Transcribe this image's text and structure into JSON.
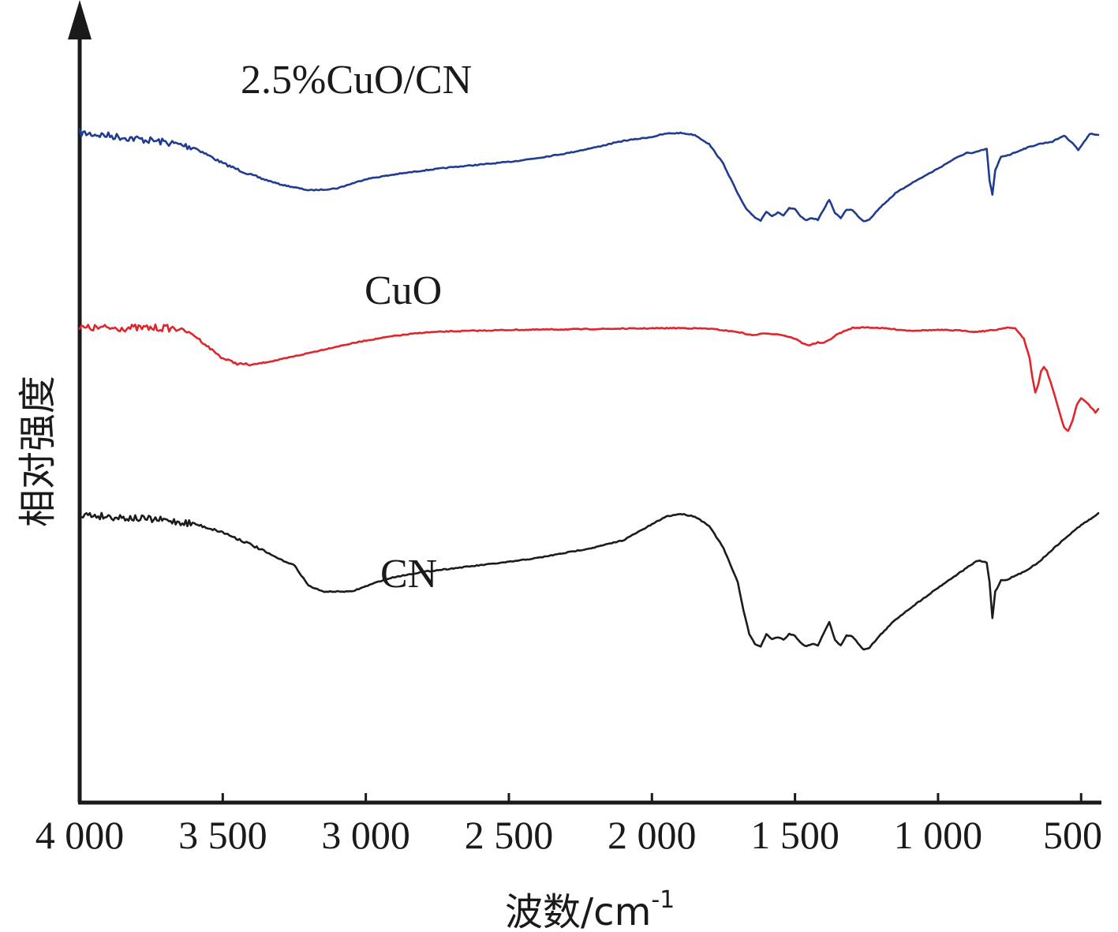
{
  "chart_data": {
    "type": "line",
    "xlabel": "波数/cm",
    "xlabel_sup": "-1",
    "ylabel": "相对强度",
    "xlim": [
      4000,
      440
    ],
    "x_reversed": true,
    "y_ticks_shown": false,
    "grid": false,
    "ylim": [
      0,
      100
    ],
    "xticks": [
      4000,
      3500,
      3000,
      2500,
      2000,
      1500,
      1000,
      500
    ],
    "xtick_labels": [
      "4 000",
      "3 500",
      "3 000",
      "2 500",
      "2 000",
      "1 500",
      "1 000",
      "500"
    ],
    "series": [
      {
        "name": "2.5%CuO/CN",
        "color": "#1f3c8f",
        "noisy_above": 3600,
        "points": [
          [
            4000,
            91.2
          ],
          [
            3900,
            90.8
          ],
          [
            3800,
            90.3
          ],
          [
            3700,
            89.8
          ],
          [
            3600,
            89.0
          ],
          [
            3500,
            86.6
          ],
          [
            3400,
            84.8
          ],
          [
            3300,
            83.4
          ],
          [
            3200,
            82.5
          ],
          [
            3150,
            82.6
          ],
          [
            3100,
            82.8
          ],
          [
            3000,
            84.2
          ],
          [
            2900,
            84.9
          ],
          [
            2800,
            85.5
          ],
          [
            2700,
            86.0
          ],
          [
            2600,
            86.4
          ],
          [
            2500,
            86.8
          ],
          [
            2400,
            87.4
          ],
          [
            2300,
            88.1
          ],
          [
            2200,
            89.0
          ],
          [
            2100,
            90.0
          ],
          [
            2000,
            90.6
          ],
          [
            1950,
            91.1
          ],
          [
            1900,
            91.2
          ],
          [
            1850,
            90.9
          ],
          [
            1800,
            89.5
          ],
          [
            1750,
            86.5
          ],
          [
            1700,
            82.0
          ],
          [
            1670,
            79.6
          ],
          [
            1640,
            78.4
          ],
          [
            1620,
            77.9
          ],
          [
            1600,
            79.3
          ],
          [
            1580,
            78.6
          ],
          [
            1560,
            79.1
          ],
          [
            1540,
            78.7
          ],
          [
            1520,
            79.8
          ],
          [
            1500,
            79.6
          ],
          [
            1480,
            78.5
          ],
          [
            1460,
            77.9
          ],
          [
            1440,
            78.3
          ],
          [
            1420,
            78.0
          ],
          [
            1400,
            79.6
          ],
          [
            1380,
            81.1
          ],
          [
            1360,
            79.0
          ],
          [
            1340,
            78.3
          ],
          [
            1320,
            79.6
          ],
          [
            1300,
            79.5
          ],
          [
            1280,
            78.6
          ],
          [
            1260,
            77.8
          ],
          [
            1240,
            78.1
          ],
          [
            1200,
            80.0
          ],
          [
            1150,
            82.0
          ],
          [
            1100,
            83.4
          ],
          [
            1050,
            84.6
          ],
          [
            1000,
            85.8
          ],
          [
            950,
            87.1
          ],
          [
            900,
            88.2
          ],
          [
            880,
            88.1
          ],
          [
            860,
            88.4
          ],
          [
            830,
            88.8
          ],
          [
            820,
            84.0
          ],
          [
            810,
            81.8
          ],
          [
            800,
            85.5
          ],
          [
            780,
            87.6
          ],
          [
            750,
            87.9
          ],
          [
            700,
            88.8
          ],
          [
            650,
            89.5
          ],
          [
            600,
            89.9
          ],
          [
            560,
            90.8
          ],
          [
            530,
            89.7
          ],
          [
            510,
            88.6
          ],
          [
            490,
            89.8
          ],
          [
            470,
            91.1
          ],
          [
            450,
            91.0
          ],
          [
            440,
            90.9
          ]
        ]
      },
      {
        "name": "CuO",
        "color": "#e0262d",
        "noisy_above": 3650,
        "points": [
          [
            4000,
            61.6
          ],
          [
            3900,
            61.6
          ],
          [
            3800,
            61.6
          ],
          [
            3700,
            61.6
          ],
          [
            3650,
            61.5
          ],
          [
            3600,
            60.5
          ],
          [
            3550,
            58.7
          ],
          [
            3500,
            57.0
          ],
          [
            3450,
            56.2
          ],
          [
            3400,
            56.0
          ],
          [
            3300,
            56.8
          ],
          [
            3200,
            57.8
          ],
          [
            3100,
            58.8
          ],
          [
            3000,
            59.7
          ],
          [
            2900,
            60.4
          ],
          [
            2800,
            60.9
          ],
          [
            2700,
            61.1
          ],
          [
            2500,
            61.3
          ],
          [
            2300,
            61.4
          ],
          [
            2100,
            61.5
          ],
          [
            1900,
            61.6
          ],
          [
            1800,
            61.5
          ],
          [
            1700,
            61.0
          ],
          [
            1650,
            60.5
          ],
          [
            1600,
            60.8
          ],
          [
            1550,
            60.6
          ],
          [
            1500,
            60.0
          ],
          [
            1470,
            59.2
          ],
          [
            1450,
            59.0
          ],
          [
            1420,
            59.4
          ],
          [
            1400,
            59.3
          ],
          [
            1380,
            59.8
          ],
          [
            1350,
            60.7
          ],
          [
            1300,
            61.6
          ],
          [
            1250,
            61.7
          ],
          [
            1200,
            61.6
          ],
          [
            1100,
            61.2
          ],
          [
            1000,
            61.3
          ],
          [
            900,
            61.2
          ],
          [
            880,
            61.0
          ],
          [
            850,
            61.1
          ],
          [
            800,
            61.3
          ],
          [
            760,
            61.7
          ],
          [
            730,
            61.5
          ],
          [
            700,
            60.0
          ],
          [
            680,
            57.0
          ],
          [
            670,
            54.0
          ],
          [
            660,
            51.8
          ],
          [
            650,
            53.0
          ],
          [
            640,
            55.0
          ],
          [
            630,
            55.7
          ],
          [
            620,
            55.1
          ],
          [
            600,
            52.5
          ],
          [
            580,
            49.5
          ],
          [
            560,
            46.5
          ],
          [
            545,
            46.0
          ],
          [
            530,
            47.5
          ],
          [
            515,
            50.0
          ],
          [
            500,
            50.9
          ],
          [
            480,
            50.3
          ],
          [
            460,
            49.3
          ],
          [
            450,
            48.8
          ],
          [
            440,
            49.3
          ]
        ]
      },
      {
        "name": "CN",
        "color": "#1c1c1c",
        "noisy_above": 3600,
        "points": [
          [
            4000,
            33.3
          ],
          [
            3900,
            33.0
          ],
          [
            3800,
            32.7
          ],
          [
            3700,
            32.4
          ],
          [
            3600,
            31.9
          ],
          [
            3500,
            30.6
          ],
          [
            3400,
            28.7
          ],
          [
            3350,
            27.6
          ],
          [
            3300,
            26.5
          ],
          [
            3250,
            25.6
          ],
          [
            3200,
            22.5
          ],
          [
            3150,
            21.6
          ],
          [
            3100,
            21.6
          ],
          [
            3050,
            21.6
          ],
          [
            3000,
            22.4
          ],
          [
            2950,
            23.2
          ],
          [
            2900,
            23.8
          ],
          [
            2800,
            24.6
          ],
          [
            2700,
            25.1
          ],
          [
            2600,
            25.6
          ],
          [
            2500,
            26.1
          ],
          [
            2400,
            26.7
          ],
          [
            2300,
            27.5
          ],
          [
            2200,
            28.3
          ],
          [
            2100,
            29.4
          ],
          [
            2000,
            31.8
          ],
          [
            1950,
            33.0
          ],
          [
            1900,
            33.4
          ],
          [
            1850,
            33.0
          ],
          [
            1800,
            31.6
          ],
          [
            1750,
            28.2
          ],
          [
            1700,
            23.0
          ],
          [
            1680,
            18.8
          ],
          [
            1660,
            15.2
          ],
          [
            1640,
            13.6
          ],
          [
            1620,
            13.3
          ],
          [
            1600,
            15.1
          ],
          [
            1580,
            14.4
          ],
          [
            1560,
            14.7
          ],
          [
            1540,
            14.3
          ],
          [
            1520,
            15.2
          ],
          [
            1500,
            14.9
          ],
          [
            1480,
            13.8
          ],
          [
            1460,
            13.3
          ],
          [
            1440,
            13.7
          ],
          [
            1420,
            13.4
          ],
          [
            1400,
            15.3
          ],
          [
            1380,
            17.0
          ],
          [
            1360,
            14.2
          ],
          [
            1340,
            13.4
          ],
          [
            1320,
            15.0
          ],
          [
            1300,
            14.8
          ],
          [
            1280,
            13.8
          ],
          [
            1260,
            12.8
          ],
          [
            1240,
            13.1
          ],
          [
            1200,
            15.1
          ],
          [
            1150,
            17.3
          ],
          [
            1100,
            19.0
          ],
          [
            1050,
            20.6
          ],
          [
            1000,
            22.2
          ],
          [
            950,
            23.7
          ],
          [
            900,
            25.2
          ],
          [
            880,
            25.8
          ],
          [
            860,
            26.3
          ],
          [
            830,
            26.0
          ],
          [
            820,
            23.0
          ],
          [
            810,
            17.6
          ],
          [
            800,
            21.6
          ],
          [
            780,
            23.3
          ],
          [
            760,
            23.4
          ],
          [
            700,
            24.6
          ],
          [
            650,
            26.0
          ],
          [
            600,
            28.0
          ],
          [
            550,
            29.9
          ],
          [
            500,
            31.7
          ],
          [
            460,
            32.8
          ],
          [
            440,
            33.5
          ]
        ]
      }
    ],
    "series_labels": [
      "2.5%CuO/CN",
      "CuO",
      "CN"
    ]
  }
}
